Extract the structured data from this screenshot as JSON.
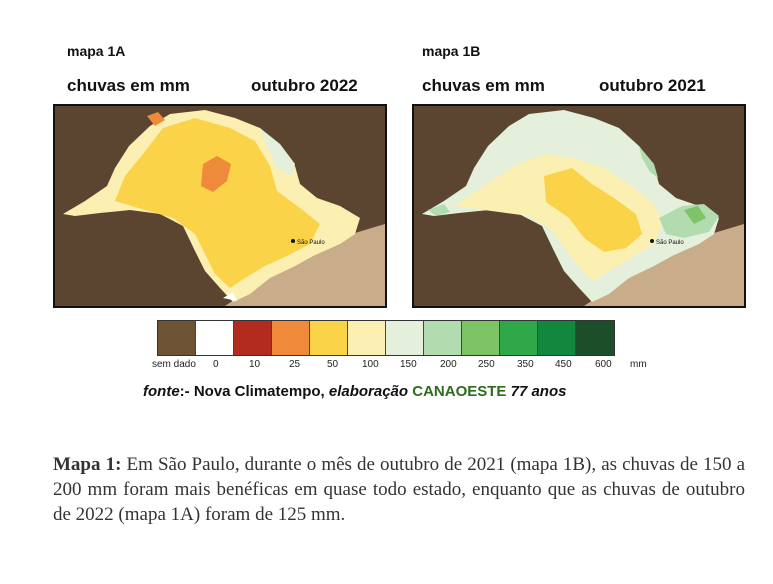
{
  "map_a": {
    "title": "mapa 1A",
    "subtitle_left": "chuvas em mm",
    "subtitle_right": "outubro 2022",
    "city_label": "São Paulo"
  },
  "map_b": {
    "title": "mapa 1B",
    "subtitle_left": "chuvas em mm",
    "subtitle_right": "outubro 2021",
    "city_label": "São Paulo"
  },
  "legend": {
    "colors": [
      "#6e5234",
      "#ffffff",
      "#b32a1e",
      "#f08a3b",
      "#fbd348",
      "#fbf0b2",
      "#e4f0dc",
      "#b2dcb0",
      "#7cc466",
      "#2fa84a",
      "#12883e",
      "#1d4e2a"
    ],
    "labels": [
      "sem dado",
      "0",
      "10",
      "25",
      "50",
      "100",
      "150",
      "200",
      "250",
      "350",
      "450",
      "600",
      "mm"
    ]
  },
  "source": {
    "prefix": "fonte",
    "part1": ":- Nova Climatempo, ",
    "part2": "elaboração",
    "part3": " ",
    "part4": "CANAOESTE",
    "part5": " 77 anos"
  },
  "caption": {
    "bold": "Mapa 1:",
    "text": " Em São Paulo, durante o mês de outubro de 2021 (mapa 1B), as chuvas de 150 a 200 mm foram mais benéficas em quase todo estado, enquanto que as chuvas de outubro de 2022 (mapa 1A) foram de 125 mm."
  }
}
